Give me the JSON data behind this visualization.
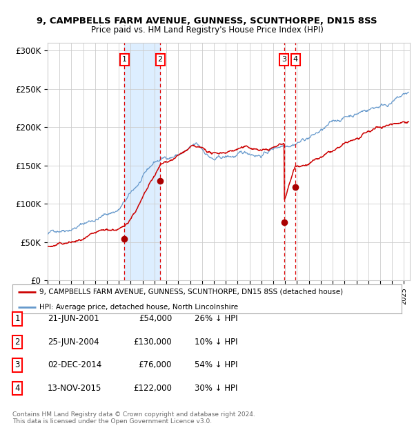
{
  "title": "9, CAMPBELLS FARM AVENUE, GUNNESS, SCUNTHORPE, DN15 8SS",
  "subtitle": "Price paid vs. HM Land Registry's House Price Index (HPI)",
  "xlim_start": 1995.0,
  "xlim_end": 2025.5,
  "ylim": [
    0,
    310000
  ],
  "yticks": [
    0,
    50000,
    100000,
    150000,
    200000,
    250000,
    300000
  ],
  "ytick_labels": [
    "£0",
    "£50K",
    "£100K",
    "£150K",
    "£200K",
    "£250K",
    "£300K"
  ],
  "sale_dates": [
    2001.47,
    2004.48,
    2014.92,
    2015.87
  ],
  "sale_prices": [
    54000,
    130000,
    76000,
    122000
  ],
  "sale_labels": [
    "1",
    "2",
    "3",
    "4"
  ],
  "vline_color": "#dd0000",
  "shade_x1": 2001.47,
  "shade_x2": 2004.48,
  "shade_color": "#ddeeff",
  "red_line_color": "#cc0000",
  "blue_line_color": "#6699cc",
  "marker_color": "#aa0000",
  "legend_red_label": "9, CAMPBELLS FARM AVENUE, GUNNESS, SCUNTHORPE, DN15 8SS (detached house)",
  "legend_blue_label": "HPI: Average price, detached house, North Lincolnshire",
  "table_rows": [
    [
      "1",
      "21-JUN-2001",
      "£54,000",
      "26% ↓ HPI"
    ],
    [
      "2",
      "25-JUN-2004",
      "£130,000",
      "10% ↓ HPI"
    ],
    [
      "3",
      "02-DEC-2014",
      "£76,000",
      "54% ↓ HPI"
    ],
    [
      "4",
      "13-NOV-2015",
      "£122,000",
      "30% ↓ HPI"
    ]
  ],
  "footnote": "Contains HM Land Registry data © Crown copyright and database right 2024.\nThis data is licensed under the Open Government Licence v3.0.",
  "background_color": "#ffffff",
  "grid_color": "#cccccc"
}
